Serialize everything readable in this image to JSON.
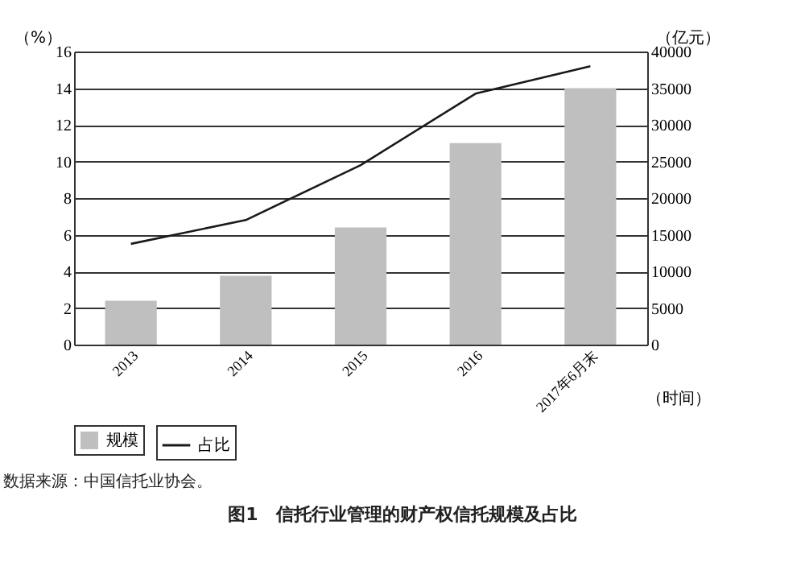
{
  "chart_data": {
    "type": "bar",
    "title": "图1　信托行业管理的财产权信托规模及占比",
    "xlabel": "（时间）",
    "ylabel": "（%）",
    "y2label": "（亿元）",
    "annotations": [
      "数据来源：中国信托业协会。"
    ],
    "categories": [
      "2013",
      "2014",
      "2015",
      "2016",
      "2017年6月末"
    ],
    "series": [
      {
        "name": "规模",
        "axis": "y2",
        "color": "#bfbfbf",
        "values": [
          6000,
          9400,
          16000,
          27500,
          35000
        ]
      },
      {
        "name": "占比",
        "type": "line",
        "color": "#1a1a1a",
        "values": [
          5.5,
          6.8,
          9.8,
          13.7,
          15.2
        ]
      }
    ],
    "ylim": [
      0,
      16
    ],
    "yticks": [
      0,
      2,
      4,
      6,
      8,
      10,
      12,
      14,
      16
    ],
    "y2lim": [
      0,
      40000
    ],
    "y2ticks": [
      0,
      5000,
      10000,
      15000,
      20000,
      25000,
      30000,
      35000,
      40000
    ],
    "grid": "y",
    "legend": "bottom"
  }
}
